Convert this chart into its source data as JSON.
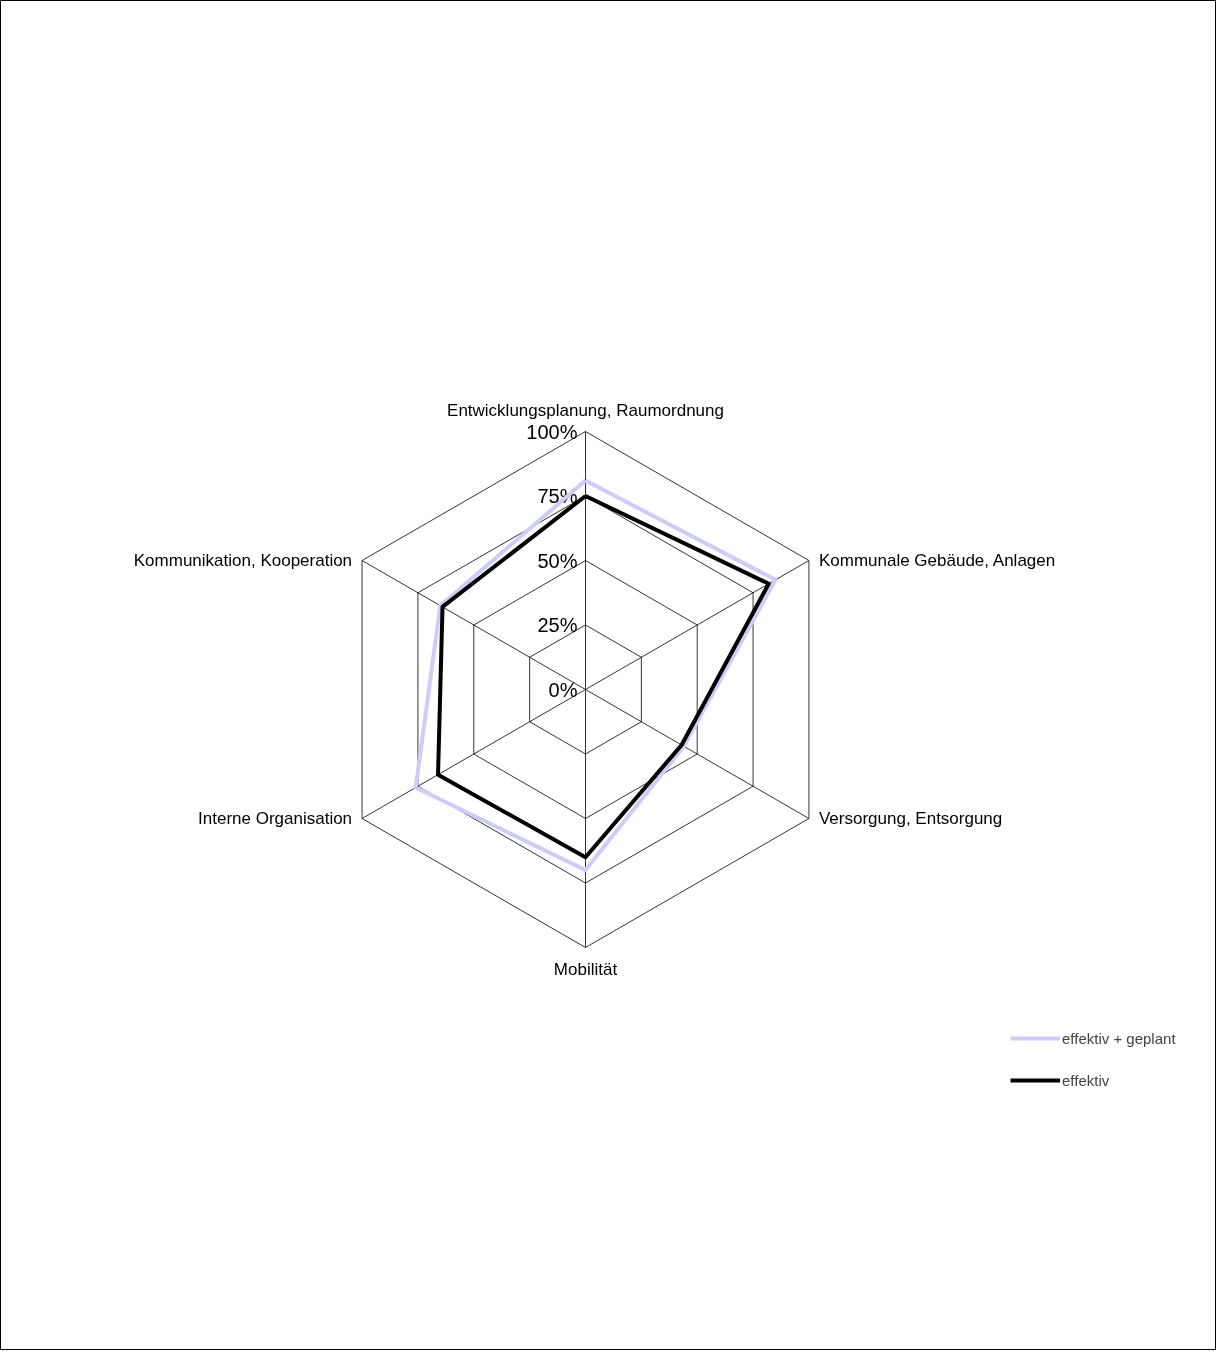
{
  "chart_data": {
    "type": "radar",
    "categories": [
      "Entwicklungsplanung, Raumordnung",
      "Kommunale Gebäude, Anlagen",
      "Versorgung, Entsorgung",
      "Mobilität",
      "Interne Organisation",
      "Kommunikation, Kooperation"
    ],
    "series": [
      {
        "name": "effektiv + geplant",
        "color": "#ccccff",
        "values": [
          81,
          85,
          44,
          70,
          76,
          65
        ]
      },
      {
        "name": "effektiv",
        "color": "#000000",
        "values": [
          75,
          82,
          43,
          65,
          66,
          64
        ]
      }
    ],
    "ylim": [
      0,
      100
    ],
    "yticks": [
      {
        "value": 0,
        "label": "0%"
      },
      {
        "value": 25,
        "label": "25%"
      },
      {
        "value": 50,
        "label": "50%"
      },
      {
        "value": 75,
        "label": "75%"
      },
      {
        "value": 100,
        "label": "100%"
      }
    ],
    "grid": true,
    "legend": "right"
  }
}
